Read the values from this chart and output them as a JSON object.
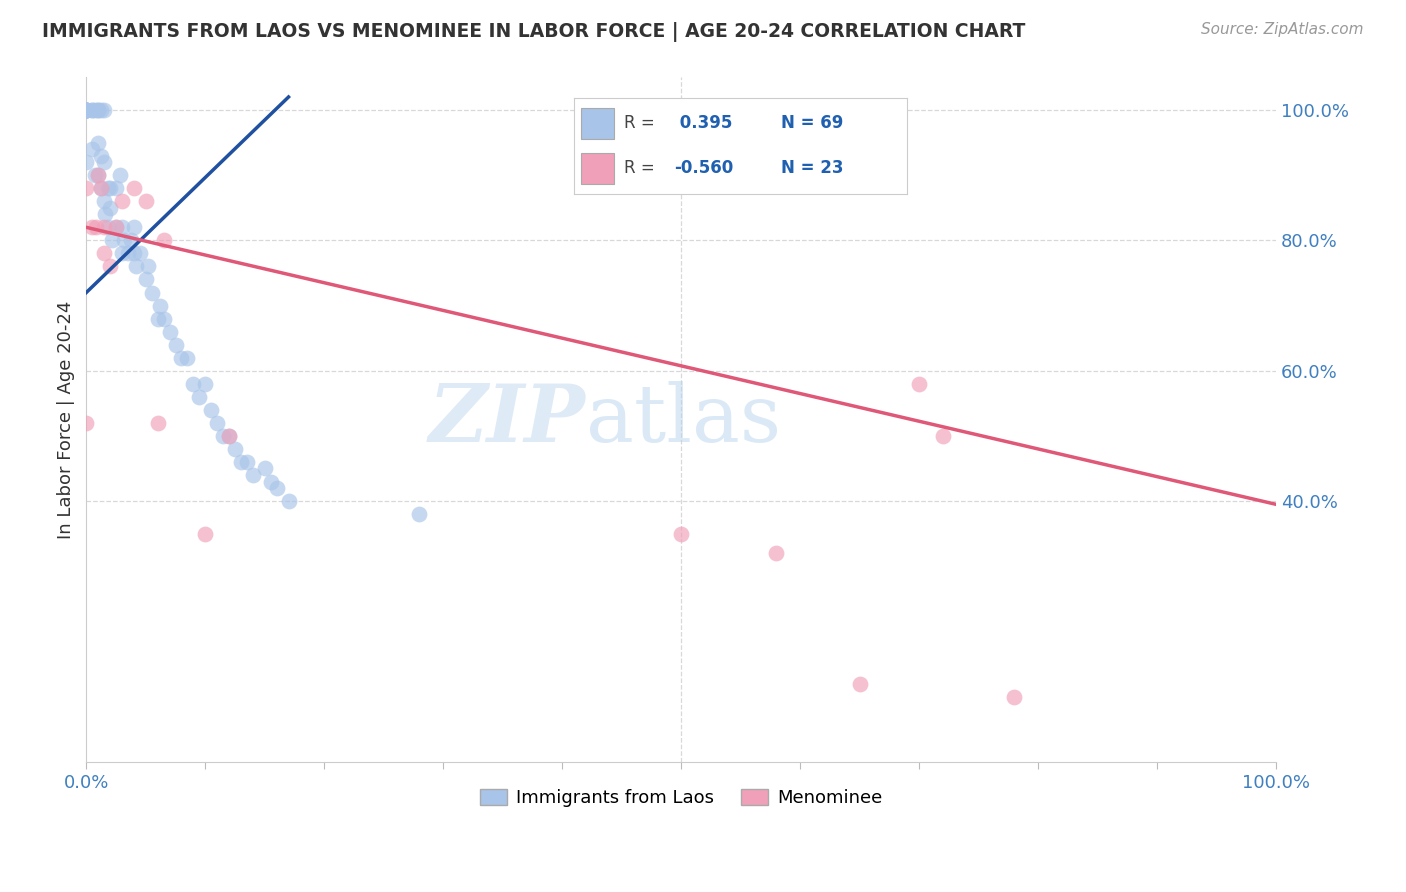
{
  "title": "IMMIGRANTS FROM LAOS VS MENOMINEE IN LABOR FORCE | AGE 20-24 CORRELATION CHART",
  "source": "Source: ZipAtlas.com",
  "ylabel": "In Labor Force | Age 20-24",
  "xlim": [
    0,
    1.0
  ],
  "ylim": [
    0,
    1.05
  ],
  "ytick_positions": [
    0.4,
    0.6,
    0.8,
    1.0
  ],
  "ytick_labels": [
    "40.0%",
    "60.0%",
    "80.0%",
    "100.0%"
  ],
  "r_blue": 0.395,
  "n_blue": 69,
  "r_pink": -0.56,
  "n_pink": 23,
  "watermark_zip": "ZIP",
  "watermark_atlas": "atlas",
  "blue_scatter_x": [
    0.0,
    0.0,
    0.0,
    0.0,
    0.0,
    0.0,
    0.0,
    0.0,
    0.0,
    0.0,
    0.005,
    0.005,
    0.005,
    0.007,
    0.007,
    0.01,
    0.01,
    0.01,
    0.01,
    0.012,
    0.012,
    0.012,
    0.015,
    0.015,
    0.015,
    0.016,
    0.018,
    0.018,
    0.02,
    0.02,
    0.022,
    0.025,
    0.025,
    0.028,
    0.03,
    0.03,
    0.032,
    0.035,
    0.038,
    0.04,
    0.04,
    0.042,
    0.045,
    0.05,
    0.052,
    0.055,
    0.06,
    0.062,
    0.065,
    0.07,
    0.075,
    0.08,
    0.085,
    0.09,
    0.095,
    0.1,
    0.105,
    0.11,
    0.115,
    0.12,
    0.125,
    0.13,
    0.135,
    0.14,
    0.15,
    0.155,
    0.16,
    0.17,
    0.28
  ],
  "blue_scatter_y": [
    1.0,
    1.0,
    1.0,
    1.0,
    1.0,
    1.0,
    1.0,
    1.0,
    1.0,
    0.92,
    1.0,
    1.0,
    0.94,
    1.0,
    0.9,
    1.0,
    1.0,
    0.95,
    0.9,
    1.0,
    0.93,
    0.88,
    1.0,
    0.92,
    0.86,
    0.84,
    0.88,
    0.82,
    0.88,
    0.85,
    0.8,
    0.88,
    0.82,
    0.9,
    0.82,
    0.78,
    0.8,
    0.78,
    0.8,
    0.78,
    0.82,
    0.76,
    0.78,
    0.74,
    0.76,
    0.72,
    0.68,
    0.7,
    0.68,
    0.66,
    0.64,
    0.62,
    0.62,
    0.58,
    0.56,
    0.58,
    0.54,
    0.52,
    0.5,
    0.5,
    0.48,
    0.46,
    0.46,
    0.44,
    0.45,
    0.43,
    0.42,
    0.4,
    0.38
  ],
  "pink_scatter_x": [
    0.0,
    0.0,
    0.005,
    0.008,
    0.01,
    0.012,
    0.015,
    0.015,
    0.02,
    0.025,
    0.03,
    0.04,
    0.05,
    0.06,
    0.065,
    0.1,
    0.12,
    0.5,
    0.58,
    0.65,
    0.7,
    0.72,
    0.78
  ],
  "pink_scatter_y": [
    0.52,
    0.88,
    0.82,
    0.82,
    0.9,
    0.88,
    0.82,
    0.78,
    0.76,
    0.82,
    0.86,
    0.88,
    0.86,
    0.52,
    0.8,
    0.35,
    0.5,
    0.35,
    0.32,
    0.12,
    0.58,
    0.5,
    0.1
  ],
  "blue_line_start_x": 0.0,
  "blue_line_end_x": 0.17,
  "blue_line_start_y": 0.72,
  "blue_line_end_y": 1.02,
  "pink_line_start_x": 0.0,
  "pink_line_end_x": 1.0,
  "pink_line_start_y": 0.82,
  "pink_line_end_y": 0.395,
  "blue_color": "#a8c4e8",
  "pink_color": "#f0a0b8",
  "blue_line_color": "#2050a0",
  "pink_line_color": "#e05878",
  "grid_color": "#d8d8d8",
  "background_color": "#ffffff",
  "text_color_dark": "#333333",
  "text_color_blue": "#2060b0",
  "text_color_axis": "#4080c0"
}
